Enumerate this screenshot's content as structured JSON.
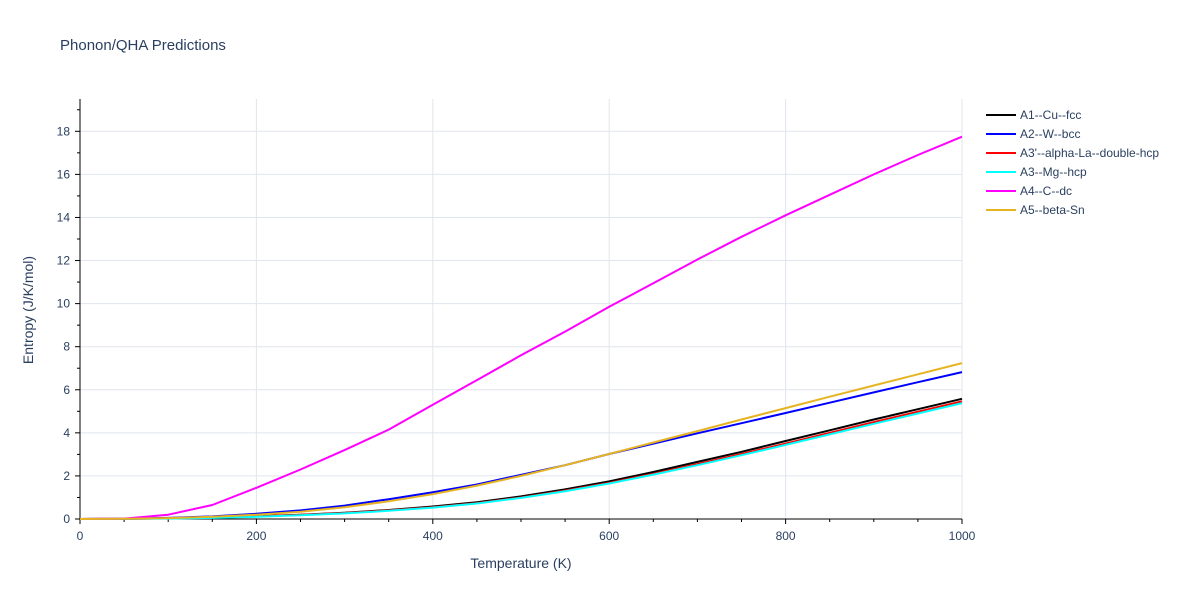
{
  "chart_data": {
    "type": "line",
    "title": "Phonon/QHA Predictions",
    "xlabel": "Temperature (K)",
    "ylabel": "Entropy (J/K/mol)",
    "xlim": [
      0,
      1000
    ],
    "ylim": [
      0,
      19.5
    ],
    "xticks": [
      0,
      200,
      400,
      600,
      800,
      1000
    ],
    "yticks": [
      0,
      2,
      4,
      6,
      8,
      10,
      12,
      14,
      16,
      18
    ],
    "grid": true,
    "legend_position": "top-right",
    "x": [
      0,
      50,
      100,
      150,
      200,
      250,
      300,
      350,
      400,
      450,
      500,
      550,
      600,
      650,
      700,
      750,
      800,
      850,
      900,
      950,
      1000
    ],
    "series": [
      {
        "name": "A1--Cu--fcc",
        "color": "#000000",
        "values": [
          0,
          0.01,
          0.03,
          0.07,
          0.13,
          0.2,
          0.29,
          0.42,
          0.58,
          0.78,
          1.05,
          1.38,
          1.75,
          2.18,
          2.65,
          3.12,
          3.62,
          4.12,
          4.62,
          5.1,
          5.58
        ]
      },
      {
        "name": "A2--W--bcc",
        "color": "#0000ff",
        "values": [
          0,
          0.01,
          0.05,
          0.12,
          0.24,
          0.4,
          0.62,
          0.92,
          1.24,
          1.6,
          2.05,
          2.5,
          3.02,
          3.5,
          3.98,
          4.45,
          4.92,
          5.4,
          5.88,
          6.35,
          6.82
        ]
      },
      {
        "name": "A3'--alpha-La--double-hcp",
        "color": "#ff0000",
        "values": [
          0,
          0.01,
          0.03,
          0.06,
          0.12,
          0.19,
          0.28,
          0.4,
          0.55,
          0.74,
          1.0,
          1.32,
          1.68,
          2.1,
          2.55,
          3.02,
          3.5,
          4.0,
          4.5,
          4.98,
          5.46
        ]
      },
      {
        "name": "A3--Mg--hcp",
        "color": "#00ffff",
        "values": [
          0,
          0.01,
          0.02,
          0.05,
          0.1,
          0.17,
          0.26,
          0.38,
          0.53,
          0.72,
          0.98,
          1.29,
          1.65,
          2.06,
          2.5,
          2.96,
          3.44,
          3.93,
          4.42,
          4.9,
          5.38
        ]
      },
      {
        "name": "A4--C--dc",
        "color": "#ff00ff",
        "values": [
          0,
          0.02,
          0.2,
          0.65,
          1.45,
          2.3,
          3.2,
          4.15,
          5.3,
          6.45,
          7.6,
          8.7,
          9.85,
          10.95,
          12.05,
          13.1,
          14.1,
          15.05,
          16.0,
          16.9,
          17.75
        ]
      },
      {
        "name": "A5--beta-Sn",
        "color": "#e6b422",
        "values": [
          0,
          0.01,
          0.04,
          0.1,
          0.2,
          0.34,
          0.55,
          0.82,
          1.15,
          1.55,
          2.0,
          2.5,
          3.02,
          3.55,
          4.08,
          4.62,
          5.15,
          5.68,
          6.2,
          6.72,
          7.24
        ]
      }
    ]
  }
}
